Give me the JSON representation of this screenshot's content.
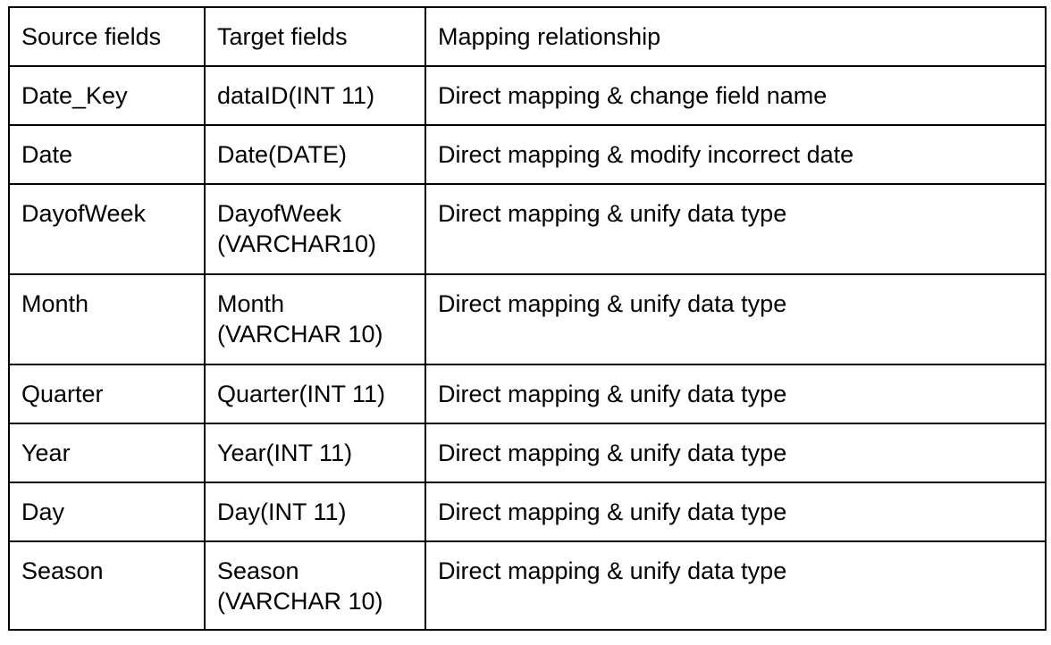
{
  "table": {
    "headers": [
      "Source fields",
      "Target fields",
      "Mapping relationship"
    ],
    "rows": [
      {
        "source": "Date_Key",
        "target": "dataID(INT 11)",
        "mapping": "Direct mapping & change field name"
      },
      {
        "source": "Date",
        "target": "Date(DATE)",
        "mapping": "Direct mapping & modify incorrect date"
      },
      {
        "source": "DayofWeek",
        "target": "DayofWeek\n(VARCHAR10)",
        "mapping": "Direct mapping & unify data type"
      },
      {
        "source": "Month",
        "target": "Month\n(VARCHAR 10)",
        "mapping": "Direct mapping & unify data type"
      },
      {
        "source": "Quarter",
        "target": "Quarter(INT 11)",
        "mapping": "Direct mapping & unify data type"
      },
      {
        "source": "Year",
        "target": "Year(INT 11)",
        "mapping": "Direct mapping & unify data type"
      },
      {
        "source": "Day",
        "target": "Day(INT 11)",
        "mapping": "Direct mapping & unify data type"
      },
      {
        "source": "Season",
        "target": "Season\n(VARCHAR 10)",
        "mapping": "Direct mapping & unify data type"
      }
    ]
  }
}
